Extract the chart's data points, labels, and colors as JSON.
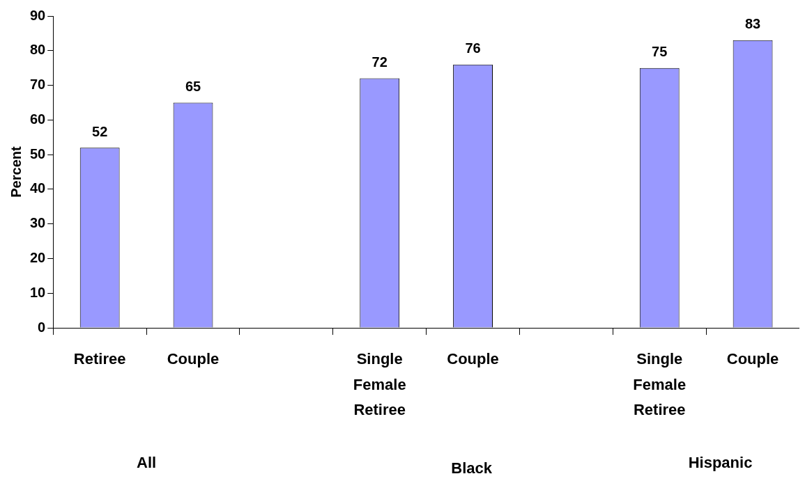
{
  "chart_data": {
    "type": "bar",
    "ylabel": "Percent",
    "categories": [
      "Retiree",
      "Couple",
      null,
      "Single Female Retiree",
      "Couple",
      null,
      "Single Female Retiree",
      "Couple"
    ],
    "values": [
      52,
      65,
      null,
      72,
      76,
      null,
      75,
      83
    ],
    "color": "#9999ff",
    "ylim": [
      0,
      90
    ],
    "yticks": [
      0,
      10,
      20,
      30,
      40,
      50,
      60,
      70,
      80,
      90
    ],
    "grid": false,
    "legend": false,
    "data_labels": true,
    "annotations": [
      "All",
      "Black",
      "Hispanic"
    ]
  }
}
